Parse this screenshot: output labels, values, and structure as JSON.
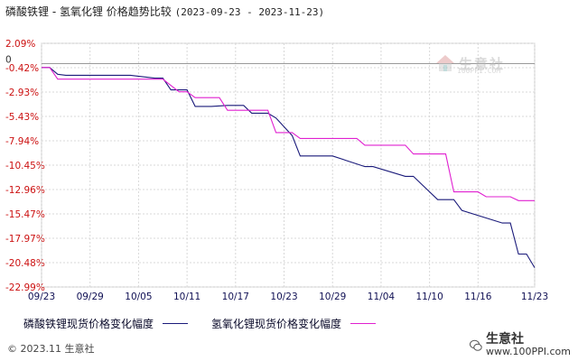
{
  "header": {
    "title": "磷酸铁锂 - 氢氧化锂 价格趋势比较",
    "date_range": "(2023-09-23 - 2023-11-23)"
  },
  "watermark": {
    "name": "生意社",
    "url": "100PPI.COM"
  },
  "footer": {
    "copyright": "© 2023.11 生意社",
    "brand_name": "生意社",
    "brand_url": "www.100PPI.com"
  },
  "colors": {
    "series1": "#1a1a7a",
    "series2": "#e020d0",
    "grid": "#d8d8d8",
    "zero_line": "#999999"
  },
  "chart_data": {
    "type": "line",
    "title": "磷酸铁锂 - 氢氧化锂 价格趋势比较",
    "xlabel": "",
    "ylabel": "",
    "ylim": [
      -22.99,
      2.09
    ],
    "xlim": [
      "2023-09-23",
      "2023-11-23"
    ],
    "grid": true,
    "legend_position": "bottom",
    "y_ticks": [
      "2.09%",
      "-0.42%",
      "-2.93%",
      "-5.43%",
      "-7.94%",
      "-10.45%",
      "-12.96%",
      "-15.47%",
      "-17.97%",
      "-20.48%",
      "-22.99%"
    ],
    "y_tick_values": [
      2.09,
      -0.42,
      -2.93,
      -5.43,
      -7.94,
      -10.45,
      -12.96,
      -15.47,
      -17.97,
      -20.48,
      -22.99
    ],
    "x_ticks": [
      "09/23",
      "09/29",
      "10/05",
      "10/11",
      "10/17",
      "10/23",
      "10/29",
      "11/04",
      "11/10",
      "11/16",
      "11/23"
    ],
    "x_tick_dates": [
      "2023-09-23",
      "2023-09-29",
      "2023-10-05",
      "2023-10-11",
      "2023-10-17",
      "2023-10-23",
      "2023-10-29",
      "2023-11-04",
      "2023-11-10",
      "2023-11-16",
      "2023-11-23"
    ],
    "zero_label": "0",
    "series": [
      {
        "name": "磷酸铁锂现货价格变化幅度",
        "color": "#1a1a7a",
        "x": [
          "2023-09-23",
          "2023-09-24",
          "2023-09-25",
          "2023-09-26",
          "2023-09-27",
          "2023-09-28",
          "2023-10-04",
          "2023-10-07",
          "2023-10-08",
          "2023-10-09",
          "2023-10-11",
          "2023-10-12",
          "2023-10-14",
          "2023-10-16",
          "2023-10-18",
          "2023-10-19",
          "2023-10-21",
          "2023-10-22",
          "2023-10-24",
          "2023-10-25",
          "2023-10-26",
          "2023-10-29",
          "2023-11-02",
          "2023-11-03",
          "2023-11-07",
          "2023-11-08",
          "2023-11-11",
          "2023-11-12",
          "2023-11-13",
          "2023-11-14",
          "2023-11-19",
          "2023-11-20",
          "2023-11-21",
          "2023-11-22",
          "2023-11-23"
        ],
        "y": [
          -0.4,
          -0.4,
          -1.1,
          -1.2,
          -1.2,
          -1.2,
          -1.2,
          -1.5,
          -1.5,
          -2.7,
          -2.7,
          -4.4,
          -4.4,
          -4.3,
          -4.3,
          -5.1,
          -5.1,
          -5.6,
          -7.4,
          -9.5,
          -9.5,
          -9.5,
          -10.6,
          -10.6,
          -11.6,
          -11.6,
          -14.0,
          -14.0,
          -14.0,
          -15.1,
          -16.4,
          -16.4,
          -19.6,
          -19.6,
          -21.0
        ]
      },
      {
        "name": "氢氧化锂现货价格变化幅度",
        "color": "#e020d0",
        "x": [
          "2023-09-23",
          "2023-09-24",
          "2023-09-25",
          "2023-09-26",
          "2023-09-27",
          "2023-09-28",
          "2023-10-04",
          "2023-10-07",
          "2023-10-08",
          "2023-10-10",
          "2023-10-11",
          "2023-10-12",
          "2023-10-13",
          "2023-10-15",
          "2023-10-16",
          "2023-10-19",
          "2023-10-21",
          "2023-10-22",
          "2023-10-24",
          "2023-10-25",
          "2023-10-26",
          "2023-10-29",
          "2023-11-01",
          "2023-11-02",
          "2023-11-03",
          "2023-11-07",
          "2023-11-08",
          "2023-11-09",
          "2023-11-12",
          "2023-11-13",
          "2023-11-14",
          "2023-11-15",
          "2023-11-16",
          "2023-11-17",
          "2023-11-20",
          "2023-11-21",
          "2023-11-22",
          "2023-11-23"
        ],
        "y": [
          -0.4,
          -0.4,
          -1.6,
          -1.6,
          -1.6,
          -1.6,
          -1.6,
          -1.6,
          -1.6,
          -2.9,
          -2.9,
          -3.5,
          -3.5,
          -3.5,
          -4.8,
          -4.8,
          -4.8,
          -7.1,
          -7.1,
          -7.7,
          -7.7,
          -7.7,
          -7.7,
          -8.4,
          -8.4,
          -8.4,
          -9.3,
          -9.3,
          -9.3,
          -13.2,
          -13.2,
          -13.2,
          -13.2,
          -13.7,
          -13.7,
          -14.1,
          -14.1,
          -14.1
        ]
      }
    ]
  }
}
